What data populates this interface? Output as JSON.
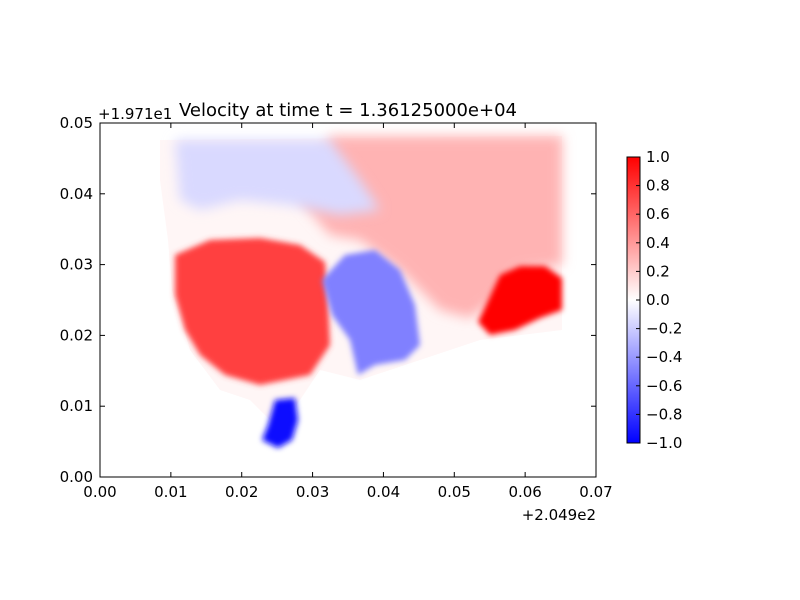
{
  "chart_data": {
    "type": "heatmap",
    "title": "Velocity at time t = 1.36125000e+04",
    "x_offset_label": "+2.049e2",
    "y_offset_label": "+1.971e1",
    "xlim": [
      0.0,
      0.07
    ],
    "ylim": [
      0.0,
      0.05
    ],
    "x_ticks": [
      "0.00",
      "0.01",
      "0.02",
      "0.03",
      "0.04",
      "0.05",
      "0.06",
      "0.07"
    ],
    "y_ticks": [
      "0.00",
      "0.01",
      "0.02",
      "0.03",
      "0.04",
      "0.05"
    ],
    "colorbar": {
      "colormap": "bwr",
      "range": [
        -1.0,
        1.0
      ],
      "ticks": [
        "−1.0",
        "−0.8",
        "−0.6",
        "−0.4",
        "−0.2",
        "0.0",
        "0.2",
        "0.4",
        "0.6",
        "0.8",
        "1.0"
      ],
      "colors": {
        "low": "#0000ff",
        "mid": "#ffffff",
        "high": "#ff0000"
      }
    },
    "regions": [
      {
        "label": "north-east positive zone",
        "value": 0.3
      },
      {
        "label": "north-west weak negative zone",
        "value": -0.15
      },
      {
        "label": "western positive lobe",
        "value": 0.75
      },
      {
        "label": "central negative basin",
        "value": -0.5
      },
      {
        "label": "southern negative channel",
        "value": -0.95
      },
      {
        "label": "eastern strong positive patch",
        "value": 1.0
      }
    ]
  }
}
